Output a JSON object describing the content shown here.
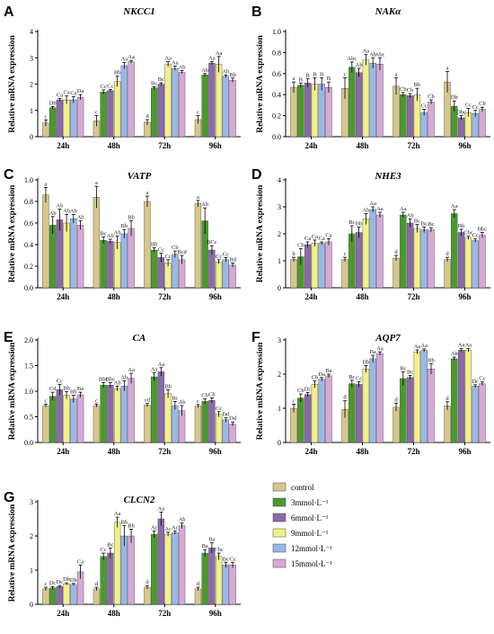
{
  "legend": {
    "entries": [
      "control",
      "3mmol·L⁻¹",
      "6mmol·L⁻¹",
      "9mmol·L⁻¹",
      "12mmol·L⁻¹",
      "15mmol·L⁻¹"
    ]
  },
  "chart_data": [
    {
      "panel": "A",
      "type": "bar",
      "title": "NKCC1",
      "ylabel": "Relative mRNA expression",
      "ylim": [
        0,
        4
      ],
      "yticks": [
        0,
        1,
        2,
        3,
        4
      ],
      "categories": [
        "24h",
        "48h",
        "72h",
        "96h"
      ],
      "series": [
        {
          "name": "control",
          "values": [
            0.52,
            0.6,
            0.55,
            0.65
          ],
          "errors": [
            0.12,
            0.2,
            0.1,
            0.15
          ],
          "labels": [
            "c",
            "c",
            "d",
            "c"
          ]
        },
        {
          "name": "3mmol·L⁻¹",
          "values": [
            1.1,
            1.7,
            1.85,
            2.35
          ],
          "errors": [
            0.05,
            0.08,
            0.05,
            0.05
          ],
          "labels": [
            "Db",
            "Cc",
            "Bc",
            "Ab"
          ]
        },
        {
          "name": "6mmol·L⁻¹",
          "values": [
            1.4,
            1.75,
            2.0,
            2.8
          ],
          "errors": [
            0.05,
            0.05,
            0.05,
            0.06
          ],
          "labels": [
            "Ca",
            "Cc",
            "Bc",
            "Aa"
          ]
        },
        {
          "name": "9mmol·L⁻¹",
          "values": [
            1.4,
            2.1,
            2.75,
            2.75
          ],
          "errors": [
            0.15,
            0.2,
            0.1,
            0.3
          ],
          "labels": [
            "Ca",
            "Bb",
            "Aa",
            "Aa"
          ]
        },
        {
          "name": "12mmol·L⁻¹",
          "values": [
            1.4,
            2.7,
            2.6,
            2.3
          ],
          "errors": [
            0.12,
            0.12,
            0.08,
            0.05
          ],
          "labels": [
            "Ca",
            "Aa",
            "Aa",
            "Ab"
          ]
        },
        {
          "name": "15mmol·L⁻¹",
          "values": [
            1.5,
            2.85,
            2.45,
            2.15
          ],
          "errors": [
            0.1,
            0.05,
            0.06,
            0.08
          ],
          "labels": [
            "Da",
            "Aa",
            "Ab",
            "Bb"
          ]
        }
      ]
    },
    {
      "panel": "B",
      "type": "bar",
      "title": "NAKα",
      "ylabel": "Relative mRNA expression",
      "ylim": [
        0,
        1.0
      ],
      "yticks": [
        0.0,
        0.2,
        0.4,
        0.6,
        0.8,
        1.0
      ],
      "categories": [
        "24h",
        "48h",
        "72h",
        "96h"
      ],
      "series": [
        {
          "name": "control",
          "values": [
            0.47,
            0.46,
            0.48,
            0.52
          ],
          "errors": [
            0.05,
            0.1,
            0.08,
            0.1
          ],
          "labels": [
            "a",
            "c",
            "a",
            "a"
          ]
        },
        {
          "name": "3mmol·L⁻¹",
          "values": [
            0.49,
            0.66,
            0.4,
            0.29
          ],
          "errors": [
            0.02,
            0.05,
            0.02,
            0.05
          ],
          "labels": [
            "B",
            "Abc",
            "Cb",
            "Db"
          ]
        },
        {
          "name": "6mmol·L⁻¹",
          "values": [
            0.51,
            0.61,
            0.39,
            0.18
          ],
          "errors": [
            0.04,
            0.04,
            0.02,
            0.02
          ],
          "labels": [
            "B",
            "Ab",
            "Cb",
            "Dbc"
          ]
        },
        {
          "name": "9mmol·L⁻¹",
          "values": [
            0.5,
            0.73,
            0.4,
            0.23
          ],
          "errors": [
            0.06,
            0.05,
            0.06,
            0.04
          ],
          "labels": [
            "B",
            "Aa",
            "Bb",
            "Cc"
          ]
        },
        {
          "name": "12mmol·L⁻¹",
          "values": [
            0.5,
            0.7,
            0.23,
            0.22
          ],
          "errors": [
            0.06,
            0.05,
            0.03,
            0.03
          ],
          "labels": [
            "B",
            "Ab",
            "Cc",
            "Cc"
          ]
        },
        {
          "name": "15mmol·L⁻¹",
          "values": [
            0.47,
            0.69,
            0.33,
            0.26
          ],
          "errors": [
            0.05,
            0.06,
            0.02,
            0.02
          ],
          "labels": [
            "B",
            "Abc",
            "Cb",
            "Cb"
          ]
        }
      ]
    },
    {
      "panel": "C",
      "type": "bar",
      "title": "VATP",
      "ylabel": "Relative mRNA expression",
      "ylim": [
        0,
        1.0
      ],
      "yticks": [
        0.0,
        0.2,
        0.4,
        0.6,
        0.8,
        1.0
      ],
      "categories": [
        "24h",
        "48h",
        "72h",
        "96h"
      ],
      "series": [
        {
          "name": "control",
          "values": [
            0.86,
            0.84,
            0.8,
            0.78
          ],
          "errors": [
            0.07,
            0.1,
            0.05,
            0.03
          ],
          "labels": [
            "a",
            "a",
            "a",
            "a"
          ]
        },
        {
          "name": "3mmol·L⁻¹",
          "values": [
            0.58,
            0.44,
            0.35,
            0.62
          ],
          "errors": [
            0.08,
            0.03,
            0.02,
            0.12
          ],
          "labels": [
            "Ab",
            "Bc",
            "Bb",
            "Ab"
          ]
        },
        {
          "name": "6mmol·L⁻¹",
          "values": [
            0.63,
            0.43,
            0.28,
            0.35
          ],
          "errors": [
            0.1,
            0.02,
            0.04,
            0.04
          ],
          "labels": [
            "Ab",
            "Ab",
            "Cc",
            "BCc"
          ]
        },
        {
          "name": "9mmol·L⁻¹",
          "values": [
            0.6,
            0.42,
            0.23,
            0.24
          ],
          "errors": [
            0.08,
            0.06,
            0.03,
            0.02
          ],
          "labels": [
            "Ab",
            "Ab",
            "Cc",
            "Cc"
          ]
        },
        {
          "name": "12mmol·L⁻¹",
          "values": [
            0.64,
            0.5,
            0.31,
            0.26
          ],
          "errors": [
            0.04,
            0.04,
            0.03,
            0.02
          ],
          "labels": [
            "Ab",
            "Bb",
            "Cb",
            "Cc"
          ]
        },
        {
          "name": "15mmol·L⁻¹",
          "values": [
            0.58,
            0.55,
            0.26,
            0.21
          ],
          "errors": [
            0.04,
            0.07,
            0.04,
            0.02
          ],
          "labels": [
            "Ab",
            "Bb",
            "Bcd",
            "Bd"
          ]
        }
      ]
    },
    {
      "panel": "D",
      "type": "bar",
      "title": "NHE3",
      "ylabel": "Relative mRNA expression",
      "ylim": [
        0,
        4
      ],
      "yticks": [
        0,
        1,
        2,
        3,
        4
      ],
      "categories": [
        "24h",
        "48h",
        "72h",
        "96h"
      ],
      "series": [
        {
          "name": "control",
          "values": [
            1.05,
            1.05,
            1.1,
            1.05
          ],
          "errors": [
            0.08,
            0.08,
            0.1,
            0.08
          ],
          "labels": [
            "b",
            "c",
            "d",
            "d"
          ]
        },
        {
          "name": "3mmol·L⁻¹",
          "values": [
            1.15,
            2.0,
            2.7,
            2.75
          ],
          "errors": [
            0.3,
            0.3,
            0.1,
            0.15
          ],
          "labels": [
            "Cb",
            "Bc",
            "Aa",
            "Aa"
          ]
        },
        {
          "name": "6mmol·L⁻¹",
          "values": [
            1.6,
            2.05,
            2.4,
            2.05
          ],
          "errors": [
            0.1,
            0.2,
            0.15,
            0.12
          ],
          "labels": [
            "Ca",
            "Bb",
            "Ab",
            "Bb"
          ]
        },
        {
          "name": "9mmol·L⁻¹",
          "values": [
            1.65,
            2.55,
            2.2,
            1.85
          ],
          "errors": [
            0.12,
            0.2,
            0.15,
            0.06
          ],
          "labels": [
            "Ca",
            "Ab",
            "Bc",
            "Cbc"
          ]
        },
        {
          "name": "12mmol·L⁻¹",
          "values": [
            1.65,
            2.9,
            2.15,
            1.75
          ],
          "errors": [
            0.05,
            0.1,
            0.1,
            0.06
          ],
          "labels": [
            "Ca",
            "Aa",
            "Bc",
            "Cc"
          ]
        },
        {
          "name": "15mmol·L⁻¹",
          "values": [
            1.7,
            2.7,
            2.15,
            1.95
          ],
          "errors": [
            0.12,
            0.1,
            0.08,
            0.1
          ],
          "labels": [
            "Ca",
            "Aa",
            "Bc",
            "Bbc"
          ]
        }
      ]
    },
    {
      "panel": "E",
      "type": "bar",
      "title": "CA",
      "ylabel": "Relative mRNA expression",
      "ylim": [
        0,
        2.0
      ],
      "yticks": [
        0.0,
        0.5,
        1.0,
        1.5,
        2.0
      ],
      "categories": [
        "24h",
        "48h",
        "72h",
        "96h"
      ],
      "series": [
        {
          "name": "control",
          "values": [
            0.72,
            0.72,
            0.73,
            0.71
          ],
          "errors": [
            0.03,
            0.03,
            0.03,
            0.03
          ],
          "labels": [
            "c",
            "c",
            "cd",
            "c"
          ]
        },
        {
          "name": "3mmol·L⁻¹",
          "values": [
            0.9,
            1.12,
            1.28,
            0.8
          ],
          "errors": [
            0.08,
            0.05,
            0.08,
            0.05
          ],
          "labels": [
            "Cd",
            "Bbc",
            "Aa",
            "Cb"
          ]
        },
        {
          "name": "6mmol·L⁻¹",
          "values": [
            1.03,
            1.12,
            1.38,
            0.82
          ],
          "errors": [
            0.1,
            0.05,
            0.08,
            0.05
          ],
          "labels": [
            "Cc",
            "Bbc",
            "Aa",
            "Cb"
          ]
        },
        {
          "name": "9mmol·L⁻¹",
          "values": [
            0.92,
            1.05,
            0.95,
            0.55
          ],
          "errors": [
            0.07,
            0.05,
            0.08,
            0.05
          ],
          "labels": [
            "Bb",
            "Ab",
            "Bb",
            "Cc"
          ]
        },
        {
          "name": "12mmol·L⁻¹",
          "values": [
            0.85,
            1.1,
            0.72,
            0.44
          ],
          "errors": [
            0.07,
            0.1,
            0.08,
            0.04
          ],
          "labels": [
            "Bb",
            "Ab",
            "Bc",
            "Dd"
          ]
        },
        {
          "name": "15mmol·L⁻¹",
          "values": [
            0.93,
            1.25,
            0.62,
            0.36
          ],
          "errors": [
            0.05,
            0.1,
            0.1,
            0.04
          ],
          "labels": [
            "Ba",
            "Aa",
            "Ab",
            "Dd"
          ]
        }
      ]
    },
    {
      "panel": "F",
      "type": "bar",
      "title": "AQP7",
      "ylabel": "Relative mRNA expression",
      "ylim": [
        0,
        3
      ],
      "yticks": [
        0,
        1,
        2,
        3
      ],
      "categories": [
        "24h",
        "48h",
        "72h",
        "96h"
      ],
      "series": [
        {
          "name": "control",
          "values": [
            1.0,
            0.97,
            1.03,
            1.07
          ],
          "errors": [
            0.12,
            0.25,
            0.12,
            0.12
          ],
          "labels": [
            "c",
            "d",
            "d",
            "d"
          ]
        },
        {
          "name": "3mmol·L⁻¹",
          "values": [
            1.3,
            1.72,
            1.87,
            2.45
          ],
          "errors": [
            0.12,
            0.1,
            0.2,
            0.05
          ],
          "labels": [
            "Cb",
            "Bc",
            "Bc",
            "Ab"
          ]
        },
        {
          "name": "6mmol·L⁻¹",
          "values": [
            1.4,
            1.7,
            1.9,
            2.7
          ],
          "errors": [
            0.06,
            0.08,
            0.06,
            0.05
          ],
          "labels": [
            "Dc",
            "Cc",
            "Bc",
            "Aa"
          ]
        },
        {
          "name": "9mmol·L⁻¹",
          "values": [
            1.7,
            2.15,
            2.65,
            2.7
          ],
          "errors": [
            0.1,
            0.1,
            0.06,
            0.05
          ],
          "labels": [
            "Cb",
            "Bb",
            "Aa",
            "Aa"
          ]
        },
        {
          "name": "12mmol·L⁻¹",
          "values": [
            1.85,
            2.45,
            2.7,
            1.65
          ],
          "errors": [
            0.05,
            0.1,
            0.04,
            0.04
          ],
          "labels": [
            "Da",
            "Ba",
            "Aa",
            "Dc"
          ]
        },
        {
          "name": "15mmol·L⁻¹",
          "values": [
            1.95,
            2.6,
            2.15,
            1.72
          ],
          "errors": [
            0.05,
            0.05,
            0.15,
            0.05
          ],
          "labels": [
            "Ba",
            "Aa",
            "Bb",
            "Cc"
          ]
        }
      ]
    },
    {
      "panel": "G",
      "type": "bar",
      "title": "CLCN2",
      "ylabel": "Relative mRNA expression",
      "ylim": [
        0,
        3
      ],
      "yticks": [
        0,
        1,
        2,
        3
      ],
      "categories": [
        "24h",
        "48h",
        "72h",
        "96h"
      ],
      "series": [
        {
          "name": "control",
          "values": [
            0.45,
            0.45,
            0.5,
            0.45
          ],
          "errors": [
            0.05,
            0.05,
            0.05,
            0.05
          ],
          "labels": [
            "c",
            "d",
            "d",
            "d"
          ]
        },
        {
          "name": "3mmol·L⁻¹",
          "values": [
            0.48,
            1.4,
            2.05,
            1.5
          ],
          "errors": [
            0.04,
            0.1,
            0.1,
            0.1
          ],
          "labels": [
            "Dc",
            "Cc",
            "Ac",
            "Ba"
          ]
        },
        {
          "name": "6mmol·L⁻¹",
          "values": [
            0.52,
            1.5,
            2.5,
            1.65
          ],
          "errors": [
            0.03,
            0.15,
            0.2,
            0.15
          ],
          "labels": [
            "Dc",
            "Bc",
            "Aa",
            "Ba"
          ]
        },
        {
          "name": "9mmol·L⁻¹",
          "values": [
            0.6,
            2.4,
            2.05,
            1.4
          ],
          "errors": [
            0.03,
            0.15,
            0.06,
            0.1
          ],
          "labels": [
            "Db",
            "Aa",
            "Ac",
            "Cbc"
          ]
        },
        {
          "name": "12mmol·L⁻¹",
          "values": [
            0.58,
            2.0,
            2.1,
            1.15
          ],
          "errors": [
            0.03,
            0.3,
            0.05,
            0.08
          ],
          "labels": [
            "Db",
            "Bb",
            "Ac",
            "Bc"
          ]
        },
        {
          "name": "15mmol·L⁻¹",
          "values": [
            0.95,
            2.0,
            2.3,
            1.15
          ],
          "errors": [
            0.2,
            0.2,
            0.08,
            0.08
          ],
          "labels": [
            "Ca",
            "Bb",
            "Ab",
            "Cc"
          ]
        }
      ]
    }
  ],
  "colors": [
    "#d8c78a",
    "#4a9a2e",
    "#8b6aa8",
    "#f2f08a",
    "#9ab8e6",
    "#d8a8d8"
  ]
}
